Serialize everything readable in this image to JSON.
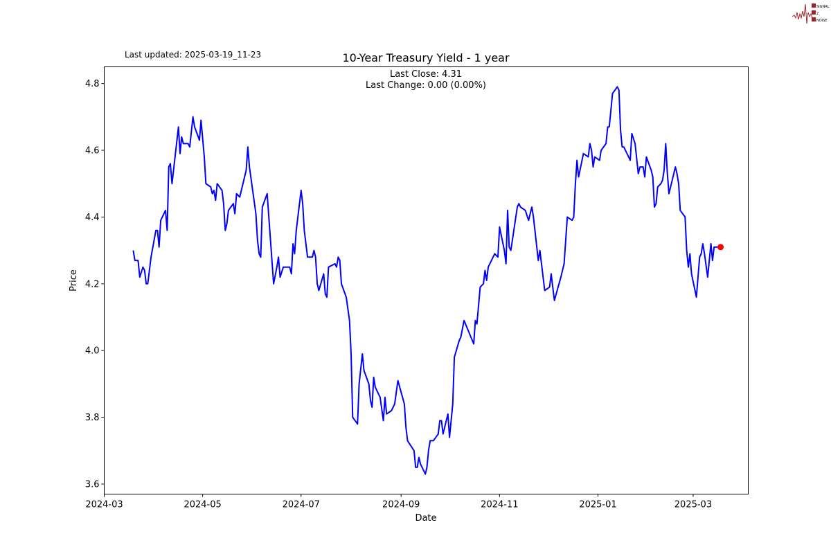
{
  "logo": {
    "text": [
      "SIGNAL",
      "2",
      "NOISE"
    ],
    "color": "#a0222a"
  },
  "last_updated": "Last updated: 2025-03-19_11-23",
  "chart_data": {
    "type": "line",
    "title": "10-Year Treasury Yield - 1 year",
    "annotation_lines": [
      "Last Close: 4.31",
      "Last Change: 0.00 (0.00%)"
    ],
    "xlabel": "Date",
    "ylabel": "Price",
    "ylim": [
      3.57,
      4.85
    ],
    "xlim": [
      "2024-03-01",
      "2025-04-05"
    ],
    "yticks": [
      3.6,
      3.8,
      4.0,
      4.2,
      4.4,
      4.6,
      4.8
    ],
    "xticks": [
      "2024-03",
      "2024-05",
      "2024-07",
      "2024-09",
      "2024-11",
      "2025-01",
      "2025-03"
    ],
    "grid": false,
    "line_color": "#0000ff",
    "marker_color": "#ff0000",
    "last_point": {
      "x": "2025-03-18",
      "y": 4.31
    },
    "x": [
      "2024-03-19",
      "2024-03-20",
      "2024-03-22",
      "2024-03-23",
      "2024-03-25",
      "2024-03-26",
      "2024-03-27",
      "2024-03-28",
      "2024-03-30",
      "2024-04-02",
      "2024-04-03",
      "2024-04-04",
      "2024-04-05",
      "2024-04-08",
      "2024-04-09",
      "2024-04-10",
      "2024-04-11",
      "2024-04-12",
      "2024-04-16",
      "2024-04-17",
      "2024-04-18",
      "2024-04-19",
      "2024-04-22",
      "2024-04-23",
      "2024-04-25",
      "2024-04-26",
      "2024-04-29",
      "2024-04-30",
      "2024-05-02",
      "2024-05-03",
      "2024-05-06",
      "2024-05-07",
      "2024-05-08",
      "2024-05-09",
      "2024-05-10",
      "2024-05-13",
      "2024-05-14",
      "2024-05-15",
      "2024-05-16",
      "2024-05-17",
      "2024-05-20",
      "2024-05-21",
      "2024-05-22",
      "2024-05-24",
      "2024-05-28",
      "2024-05-29",
      "2024-05-30",
      "2024-06-03",
      "2024-06-04",
      "2024-06-05",
      "2024-06-06",
      "2024-06-07",
      "2024-06-10",
      "2024-06-14",
      "2024-06-16",
      "2024-06-17",
      "2024-06-18",
      "2024-06-20",
      "2024-06-24",
      "2024-06-25",
      "2024-06-26",
      "2024-06-27",
      "2024-06-28",
      "2024-07-01",
      "2024-07-02",
      "2024-07-03",
      "2024-07-05",
      "2024-07-08",
      "2024-07-09",
      "2024-07-10",
      "2024-07-11",
      "2024-07-12",
      "2024-07-15",
      "2024-07-16",
      "2024-07-17",
      "2024-07-18",
      "2024-07-22",
      "2024-07-23",
      "2024-07-24",
      "2024-07-25",
      "2024-07-26",
      "2024-07-29",
      "2024-07-31",
      "2024-08-01",
      "2024-08-02",
      "2024-08-05",
      "2024-08-06",
      "2024-08-08",
      "2024-08-09",
      "2024-08-12",
      "2024-08-13",
      "2024-08-14",
      "2024-08-15",
      "2024-08-16",
      "2024-08-19",
      "2024-08-21",
      "2024-08-22",
      "2024-08-23",
      "2024-08-26",
      "2024-08-28",
      "2024-08-30",
      "2024-09-03",
      "2024-09-04",
      "2024-09-05",
      "2024-09-09",
      "2024-09-10",
      "2024-09-11",
      "2024-09-12",
      "2024-09-13",
      "2024-09-16",
      "2024-09-17",
      "2024-09-18",
      "2024-09-19",
      "2024-09-21",
      "2024-09-24",
      "2024-09-25",
      "2024-09-26",
      "2024-09-27",
      "2024-09-30",
      "2024-10-01",
      "2024-10-03",
      "2024-10-04",
      "2024-10-07",
      "2024-10-08",
      "2024-10-10",
      "2024-10-16",
      "2024-10-17",
      "2024-10-18",
      "2024-10-20",
      "2024-10-22",
      "2024-10-23",
      "2024-10-24",
      "2024-10-25",
      "2024-10-28",
      "2024-10-29",
      "2024-10-31",
      "2024-11-01",
      "2024-11-04",
      "2024-11-05",
      "2024-11-06",
      "2024-11-07",
      "2024-11-08",
      "2024-11-12",
      "2024-11-13",
      "2024-11-14",
      "2024-11-17",
      "2024-11-19",
      "2024-11-21",
      "2024-11-22",
      "2024-11-25",
      "2024-11-26",
      "2024-11-29",
      "2024-12-02",
      "2024-12-03",
      "2024-12-04",
      "2024-12-05",
      "2024-12-09",
      "2024-12-11",
      "2024-12-12",
      "2024-12-13",
      "2024-12-16",
      "2024-12-17",
      "2024-12-18",
      "2024-12-19",
      "2024-12-20",
      "2024-12-23",
      "2024-12-26",
      "2024-12-27",
      "2024-12-28",
      "2024-12-29",
      "2024-12-30",
      "2025-01-02",
      "2025-01-03",
      "2025-01-06",
      "2025-01-07",
      "2025-01-08",
      "2025-01-10",
      "2025-01-13",
      "2025-01-14",
      "2025-01-15",
      "2025-01-16",
      "2025-01-17",
      "2025-01-21",
      "2025-01-22",
      "2025-01-24",
      "2025-01-26",
      "2025-01-27",
      "2025-01-29",
      "2025-01-30",
      "2025-01-31",
      "2025-02-03",
      "2025-02-04",
      "2025-02-05",
      "2025-02-06",
      "2025-02-07",
      "2025-02-09",
      "2025-02-10",
      "2025-02-11",
      "2025-02-12",
      "2025-02-13",
      "2025-02-14",
      "2025-02-18",
      "2025-02-19",
      "2025-02-20",
      "2025-02-21",
      "2025-02-24",
      "2025-02-25",
      "2025-02-26",
      "2025-02-27",
      "2025-02-28",
      "2025-03-03",
      "2025-03-05",
      "2025-03-06",
      "2025-03-07",
      "2025-03-08",
      "2025-03-10",
      "2025-03-12",
      "2025-03-13",
      "2025-03-14",
      "2025-03-18"
    ],
    "y": [
      4.3,
      4.27,
      4.27,
      4.22,
      4.25,
      4.24,
      4.2,
      4.2,
      4.28,
      4.36,
      4.36,
      4.31,
      4.39,
      4.42,
      4.36,
      4.55,
      4.56,
      4.5,
      4.67,
      4.59,
      4.64,
      4.62,
      4.62,
      4.61,
      4.7,
      4.67,
      4.63,
      4.69,
      4.58,
      4.5,
      4.49,
      4.47,
      4.48,
      4.45,
      4.5,
      4.48,
      4.44,
      4.36,
      4.38,
      4.42,
      4.44,
      4.41,
      4.47,
      4.46,
      4.54,
      4.61,
      4.55,
      4.41,
      4.33,
      4.29,
      4.28,
      4.43,
      4.47,
      4.2,
      4.25,
      4.28,
      4.22,
      4.25,
      4.25,
      4.23,
      4.32,
      4.29,
      4.36,
      4.48,
      4.44,
      4.36,
      4.28,
      4.28,
      4.3,
      4.28,
      4.2,
      4.18,
      4.23,
      4.17,
      4.16,
      4.25,
      4.26,
      4.25,
      4.28,
      4.27,
      4.2,
      4.16,
      4.09,
      3.99,
      3.8,
      3.78,
      3.9,
      3.99,
      3.94,
      3.9,
      3.85,
      3.83,
      3.92,
      3.89,
      3.86,
      3.79,
      3.86,
      3.81,
      3.82,
      3.84,
      3.91,
      3.84,
      3.77,
      3.73,
      3.7,
      3.65,
      3.65,
      3.68,
      3.66,
      3.63,
      3.65,
      3.7,
      3.73,
      3.73,
      3.75,
      3.79,
      3.79,
      3.75,
      3.81,
      3.74,
      3.84,
      3.98,
      4.03,
      4.04,
      4.09,
      4.02,
      4.09,
      4.08,
      4.19,
      4.2,
      4.24,
      4.21,
      4.25,
      4.28,
      4.29,
      4.28,
      4.37,
      4.3,
      4.26,
      4.42,
      4.31,
      4.3,
      4.43,
      4.44,
      4.43,
      4.42,
      4.39,
      4.43,
      4.4,
      4.27,
      4.3,
      4.18,
      4.19,
      4.23,
      4.19,
      4.15,
      4.22,
      4.26,
      4.33,
      4.4,
      4.39,
      4.4,
      4.5,
      4.57,
      4.52,
      4.59,
      4.58,
      4.62,
      4.6,
      4.55,
      4.58,
      4.57,
      4.6,
      4.62,
      4.67,
      4.67,
      4.77,
      4.79,
      4.78,
      4.66,
      4.61,
      4.61,
      4.57,
      4.65,
      4.62,
      4.53,
      4.55,
      4.55,
      4.52,
      4.58,
      4.54,
      4.52,
      4.43,
      4.44,
      4.49,
      4.5,
      4.51,
      4.54,
      4.62,
      4.53,
      4.47,
      4.55,
      4.53,
      4.5,
      4.42,
      4.4,
      4.3,
      4.25,
      4.29,
      4.23,
      4.16,
      4.28,
      4.29,
      4.32,
      4.29,
      4.22,
      4.32,
      4.27,
      4.31,
      4.31
    ]
  }
}
